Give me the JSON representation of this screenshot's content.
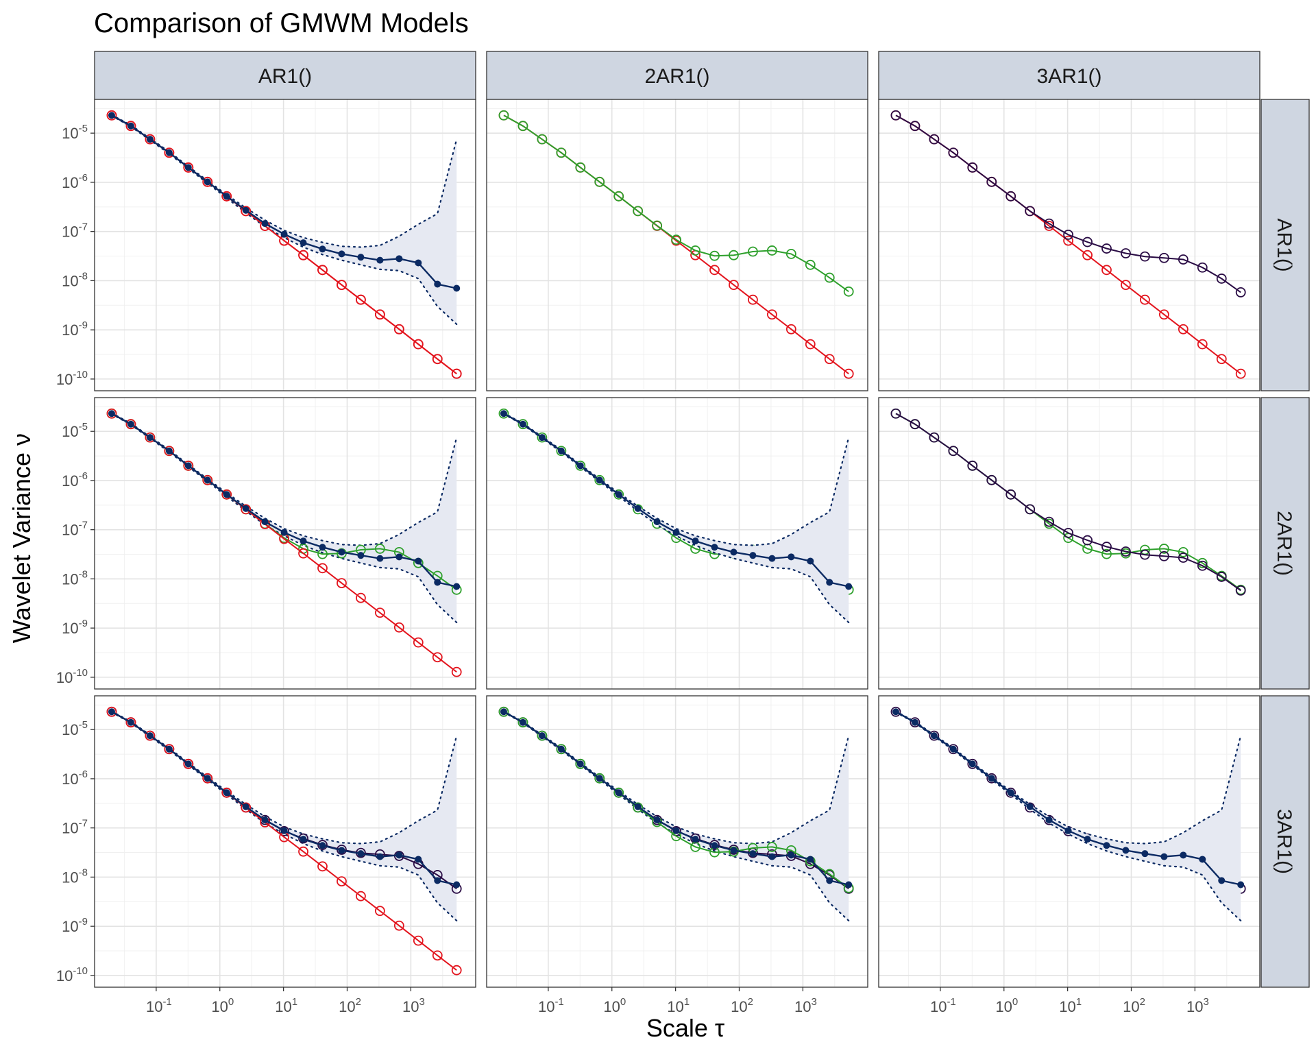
{
  "chart_data": {
    "type": "line",
    "title": "Comparison of GMWM Models",
    "xlabel": "Scale τ",
    "ylabel": "Wavelet Variance ν",
    "x_scale": "log10",
    "y_scale": "log10",
    "xlim": [
      0.0125,
      9000
    ],
    "ylim": [
      7e-11,
      4e-05
    ],
    "x_tick_labels": [
      "10-1",
      "100",
      "101",
      "102",
      "103"
    ],
    "y_tick_labels": [
      "10-5",
      "10-6",
      "10-7",
      "10-8",
      "10-9",
      "10-10"
    ],
    "column_models": [
      "AR1()",
      "2AR1()",
      "3AR1()"
    ],
    "row_models": [
      "AR1()",
      "2AR1()",
      "3AR1()"
    ],
    "colors": {
      "emp": "#0b2a63",
      "AR1()": "#e3151e",
      "2AR1()": "#2ea02c",
      "3AR1()": "#2a0c45",
      "ci_fill": "#e6e9f2",
      "strip_bg": "#cfd6e1",
      "grid": "#e3e3e3",
      "panel_border": "#333333"
    },
    "scales": [
      0.02,
      0.04,
      0.08,
      0.16,
      0.32,
      0.64,
      1.28,
      2.56,
      5.12,
      10.24,
      20.48,
      40.96,
      81.92,
      163.84,
      327.68,
      655.36,
      1310.72,
      2621.44,
      5242.88
    ],
    "series": [
      {
        "name": "Empirical WV",
        "values": [
          2.3e-05,
          1.4e-05,
          7.5e-06,
          4e-06,
          2e-06,
          1.02e-06,
          5.2e-07,
          2.7e-07,
          1.45e-07,
          8.8e-08,
          5.9e-08,
          4.4e-08,
          3.5e-08,
          3e-08,
          2.6e-08,
          2.8e-08,
          2.3e-08,
          8.5e-09,
          7e-09
        ]
      },
      {
        "name": "CI lower",
        "values": [
          2.25e-05,
          1.36e-05,
          7.2e-06,
          3.8e-06,
          1.9e-06,
          9.6e-07,
          4.8e-07,
          2.4e-07,
          1.25e-07,
          7.5e-08,
          4.8e-08,
          3.4e-08,
          2.6e-08,
          2.1e-08,
          1.7e-08,
          1.6e-08,
          1.1e-08,
          3e-09,
          1.3e-09
        ]
      },
      {
        "name": "CI upper",
        "values": [
          2.35e-05,
          1.45e-05,
          7.8e-06,
          4.2e-06,
          2.1e-06,
          1.08e-06,
          5.6e-07,
          3e-07,
          1.7e-07,
          1.05e-07,
          7.5e-08,
          6e-08,
          5e-08,
          4.8e-08,
          5.2e-08,
          8e-08,
          1.4e-07,
          2.3e-07,
          7.5e-06
        ]
      },
      {
        "name": "AR1()",
        "values": [
          2.3e-05,
          1.4e-05,
          7.5e-06,
          4e-06,
          2e-06,
          1.02e-06,
          5.2e-07,
          2.6e-07,
          1.3e-07,
          6.5e-08,
          3.3e-08,
          1.65e-08,
          8.2e-09,
          4.1e-09,
          2.05e-09,
          1.03e-09,
          5.1e-10,
          2.55e-10,
          1.28e-10
        ]
      },
      {
        "name": "2AR1()",
        "values": [
          2.3e-05,
          1.4e-05,
          7.5e-06,
          4e-06,
          2e-06,
          1.02e-06,
          5.2e-07,
          2.6e-07,
          1.32e-07,
          6.8e-08,
          4.1e-08,
          3.2e-08,
          3.3e-08,
          3.9e-08,
          4.1e-08,
          3.5e-08,
          2.1e-08,
          1.15e-08,
          6e-09
        ]
      },
      {
        "name": "3AR1()",
        "values": [
          2.3e-05,
          1.4e-05,
          7.5e-06,
          4e-06,
          2e-06,
          1.02e-06,
          5.2e-07,
          2.6e-07,
          1.45e-07,
          8.6e-08,
          6.1e-08,
          4.5e-08,
          3.6e-08,
          3.1e-08,
          2.9e-08,
          2.7e-08,
          1.85e-08,
          1.1e-08,
          5.8e-09
        ]
      }
    ]
  }
}
